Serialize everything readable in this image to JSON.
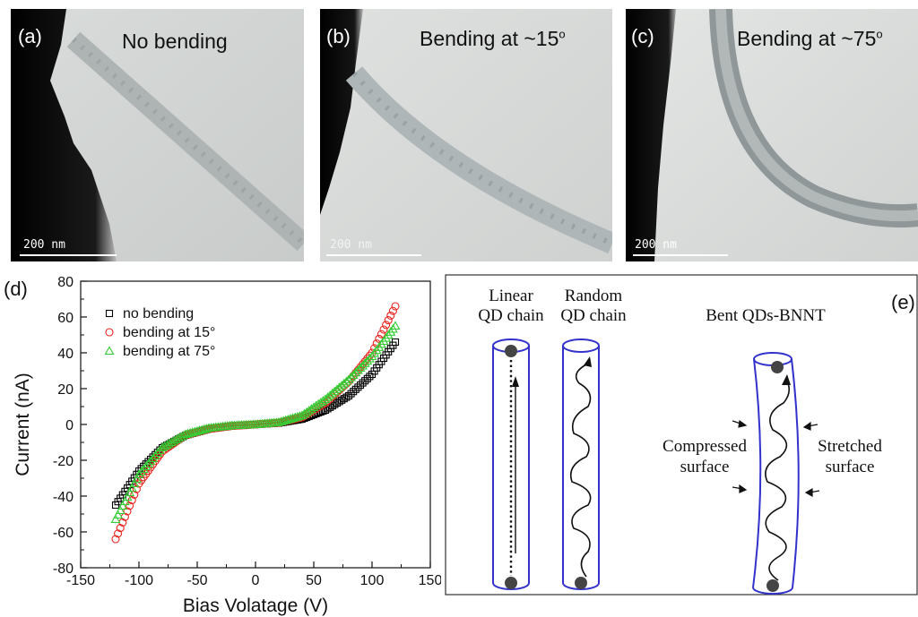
{
  "panels": {
    "a": {
      "label": "(a)",
      "title": "No bending",
      "scale": "200 nm"
    },
    "b": {
      "label": "(b)",
      "title": "Bending at ~15",
      "title_sup": "o",
      "scale": "200 nm"
    },
    "c": {
      "label": "(c)",
      "title": "Bending at ~75",
      "title_sup": "o",
      "scale": "200 nm"
    },
    "d": {
      "label": "(d)"
    },
    "e": {
      "label": "(e)",
      "linear_line1": "Linear",
      "linear_line2": "QD chain",
      "random_line1": "Random",
      "random_line2": "QD chain",
      "bent_title": "Bent QDs-BNNT",
      "compressed_line1": "Compressed",
      "compressed_line2": "surface",
      "stretched_line1": "Stretched",
      "stretched_line2": "surface"
    }
  },
  "colors": {
    "no_bending": "#000000",
    "bending_15": "#e8251f",
    "bending_75": "#33cc33",
    "tube": "#3333cc"
  },
  "chart_data": {
    "type": "scatter",
    "xlabel": "Bias Volatage (V)",
    "ylabel": "Current (nA)",
    "xlim": [
      -150,
      150
    ],
    "ylim": [
      -80,
      80
    ],
    "xticks": [
      -150,
      -100,
      -50,
      0,
      50,
      100,
      150
    ],
    "yticks": [
      -80,
      -60,
      -40,
      -20,
      0,
      20,
      40,
      60,
      80
    ],
    "legend_position": "top-left",
    "series": [
      {
        "name": "no bending",
        "marker": "square",
        "color": "#000000",
        "x": [
          -120,
          -100,
          -80,
          -60,
          -40,
          -20,
          0,
          20,
          40,
          60,
          80,
          100,
          120
        ],
        "y": [
          -45,
          -26,
          -13,
          -6,
          -2.5,
          -0.8,
          0,
          0.8,
          3,
          8,
          16,
          28,
          46
        ]
      },
      {
        "name": "bending at 15°",
        "marker": "circle",
        "color": "#e8251f",
        "x": [
          -120,
          -100,
          -80,
          -60,
          -40,
          -20,
          0,
          20,
          40,
          60,
          80,
          100,
          120
        ],
        "y": [
          -64,
          -33,
          -15,
          -6,
          -2.5,
          -0.8,
          0,
          1,
          4,
          12,
          24,
          40,
          66
        ]
      },
      {
        "name": "bending at 75°",
        "marker": "triangle",
        "color": "#33cc33",
        "x": [
          -120,
          -100,
          -80,
          -60,
          -40,
          -20,
          0,
          20,
          40,
          60,
          80,
          100,
          120
        ],
        "y": [
          -53,
          -28,
          -13,
          -5.5,
          -2,
          -0.6,
          0,
          1.2,
          5,
          14,
          25,
          38,
          55
        ]
      }
    ]
  }
}
